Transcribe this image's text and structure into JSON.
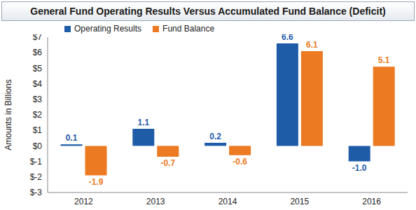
{
  "chart_data": {
    "type": "bar",
    "title": "General Fund Operating Results Versus Accumulated Fund Balance (Deficit)",
    "categories": [
      "2012",
      "2013",
      "2014",
      "2015",
      "2016"
    ],
    "series": [
      {
        "name": "Operating Results",
        "color": "#1f5ca8",
        "values": [
          0.1,
          1.1,
          0.2,
          6.6,
          -1.0
        ],
        "value_labels": [
          "0.1",
          "1.1",
          "0.2",
          "6.6",
          "-1.0"
        ]
      },
      {
        "name": "Fund Balance",
        "color": "#ec7a23",
        "values": [
          -1.9,
          -0.7,
          -0.6,
          6.1,
          5.1
        ],
        "value_labels": [
          "-1.9",
          "-0.7",
          "-0.6",
          "6.1",
          "5.1"
        ]
      }
    ],
    "ylabel": "Amounts in Billions",
    "ylim": [
      -3,
      7
    ],
    "yticks": [
      {
        "value": -3,
        "label": "$-3"
      },
      {
        "value": -2,
        "label": "$-2"
      },
      {
        "value": -1,
        "label": "$-1"
      },
      {
        "value": 0,
        "label": "$0"
      },
      {
        "value": 1,
        "label": "$1"
      },
      {
        "value": 2,
        "label": "$2"
      },
      {
        "value": 3,
        "label": "$3"
      },
      {
        "value": 4,
        "label": "$4"
      },
      {
        "value": 5,
        "label": "$5"
      },
      {
        "value": 6,
        "label": "$6"
      },
      {
        "value": 7,
        "label": "$7"
      }
    ],
    "legend": "top-left",
    "data_labels": true,
    "grid": false
  }
}
